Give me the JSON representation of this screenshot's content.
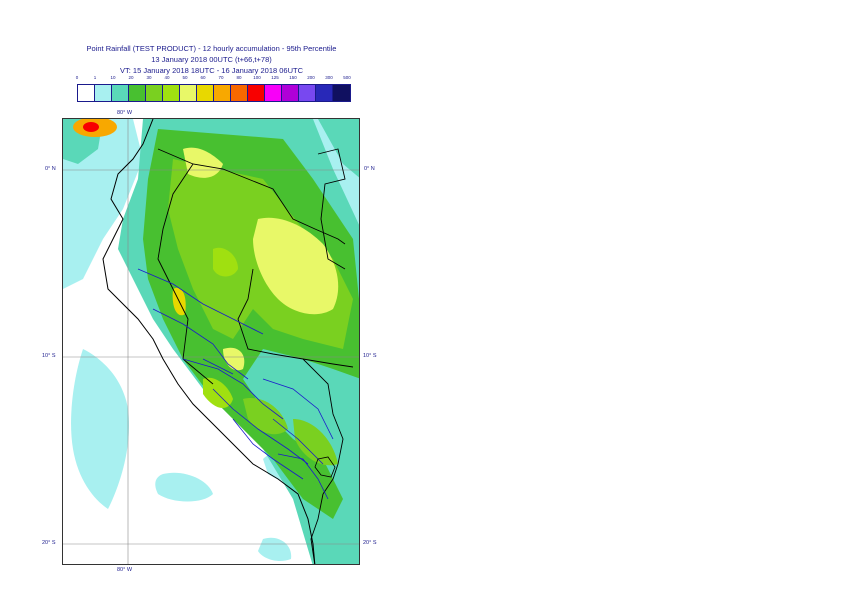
{
  "header": {
    "line1": "Point Rainfall (TEST PRODUCT) - 12 hourly accumulation - 95th Percentile",
    "line2": "13 January 2018 00UTC (t+66,t+78)",
    "line3": "VT: 15 January 2018 18UTC - 16 January 2018 06UTC"
  },
  "legend": {
    "ticks": [
      "0",
      "1",
      "10",
      "20",
      "30",
      "40",
      "50",
      "60",
      "70",
      "80",
      "100",
      "125",
      "150",
      "200",
      "300",
      "500"
    ],
    "colors": [
      "#ffffff",
      "#a8f0f0",
      "#5ad8b8",
      "#48c030",
      "#7ad020",
      "#a0e010",
      "#e8f868",
      "#e8d800",
      "#f8a800",
      "#f86800",
      "#f80000",
      "#f800f8",
      "#b000d8",
      "#7848f0",
      "#2828b8",
      "#101060"
    ]
  },
  "map": {
    "lon_top": "80° W",
    "lon_bottom": "80° W",
    "lat_0_left": "0° N",
    "lat_0_right": "0° N",
    "lat_10_left": "10° S",
    "lat_10_right": "10° S",
    "lat_20_left": "20° S",
    "lat_20_right": "20° S"
  }
}
